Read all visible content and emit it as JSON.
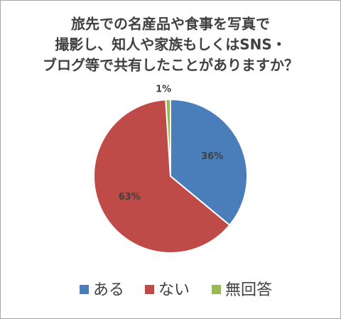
{
  "chart_data": {
    "type": "pie",
    "title": [
      "旅先での名産品や食事を写真で",
      "撮影し、知人や家族もしくはSNS・",
      "ブログ等で共有したことがありますか？"
    ],
    "categories": [
      "ある",
      "ない",
      "無回答"
    ],
    "values": [
      36,
      63,
      1
    ],
    "value_labels": [
      "36%",
      "63%",
      "1%"
    ],
    "colors": [
      "#4a7ebb",
      "#be4b48",
      "#98b954"
    ],
    "legend": "bottom"
  }
}
